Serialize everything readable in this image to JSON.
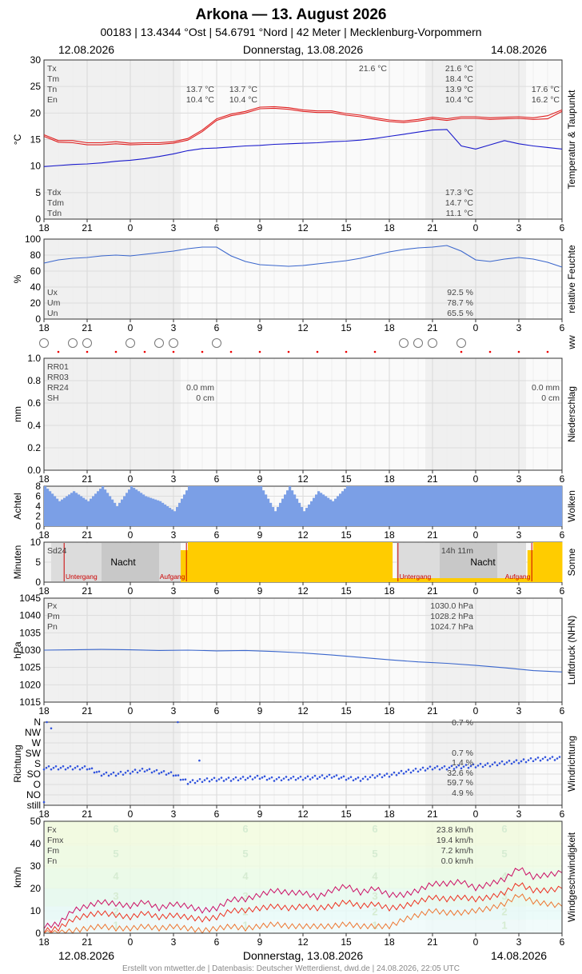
{
  "header": {
    "title": "Arkona  —  13. August 2026",
    "subtitle": "00183  |  13.4344 °Ost  |  54.6791 °Nord  |  42 Meter  |  Mecklenburg-Vorpommern",
    "date_left": "12.08.2026",
    "date_center": "Donnerstag, 13.08.2026",
    "date_right": "14.08.2026"
  },
  "footer": "Erstellt von mtwetter.de | Datenbasis: Deutscher Wetterdienst, dwd.de | 24.08.2026, 22:05 UTC",
  "x_ticks": [
    "18",
    "21",
    "0",
    "3",
    "6",
    "9",
    "12",
    "15",
    "18",
    "21",
    "0",
    "3",
    "6"
  ],
  "colors": {
    "temp": "#e02020",
    "dew": "#1a1acc",
    "humidity": "#3a66cc",
    "pressure": "#3a66cc",
    "clouds": "#7b9fe6",
    "sun": "#ffcc00",
    "direction": "#3355dd",
    "fx": "#cc1166",
    "fm": "#ee3322",
    "fn": "#ee7733"
  },
  "panels": {
    "temperature": {
      "side_label": "Temperatur & Taupunkt",
      "ylabel": "°C",
      "yticks": [
        "30",
        "25",
        "20",
        "15",
        "10",
        "5",
        "0"
      ],
      "info_labels": [
        "Tx",
        "Tm",
        "Tn",
        "En"
      ],
      "info_labels_low": [
        "Tdx",
        "Tdm",
        "Tdn"
      ],
      "annot_day1": [
        "13.7 °C",
        "10.4 °C"
      ],
      "annot_day1b": [
        "13.7 °C",
        "10.4 °C"
      ],
      "annot_peak": "21.6 °C",
      "annot_day2": [
        "21.6 °C",
        "18.4 °C",
        "13.9 °C",
        "10.4 °C"
      ],
      "annot_day3": [
        "17.6 °C",
        "16.2 °C"
      ],
      "annot_dew": [
        "17.3 °C",
        "14.7 °C",
        "11.1 °C"
      ]
    },
    "humidity": {
      "side_label": "relative Feuchte",
      "ylabel": "%",
      "yticks": [
        "100",
        "80",
        "60",
        "40",
        "20",
        "0"
      ],
      "info_labels": [
        "Ux",
        "Um",
        "Un"
      ],
      "info_values": [
        "92.5 %",
        "78.7 %",
        "65.5 %"
      ]
    },
    "ww": {
      "side_label": "ww"
    },
    "precipitation": {
      "side_label": "Niederschlag",
      "ylabel": "mm",
      "yticks": [
        "1.0",
        "0.8",
        "0.6",
        "0.4",
        "0.2",
        "0.0"
      ],
      "info_labels": [
        "RR01",
        "RR03",
        "RR24",
        "SH"
      ],
      "day1_values": [
        "0.0 mm",
        "0 cm"
      ],
      "day2_values": [
        "0.0 mm",
        "0 cm"
      ]
    },
    "clouds": {
      "side_label": "Wolken",
      "ylabel": "Achtel",
      "yticks": [
        "8",
        "6",
        "4",
        "2",
        "0"
      ]
    },
    "sunshine": {
      "side_label": "Sonne",
      "ylabel": "Minuten",
      "yticks": [
        "10",
        "5",
        "0"
      ],
      "label_sd": "Sd24",
      "sd_value": "14h 11m",
      "night": "Nacht",
      "sunset": "Untergang",
      "sunrise": "Aufgang"
    },
    "pressure": {
      "side_label": "Luftdruck (NHN)",
      "ylabel": "hPa",
      "yticks": [
        "1045",
        "1040",
        "1035",
        "1030",
        "1025",
        "1020",
        "1015"
      ],
      "info_labels": [
        "Px",
        "Pm",
        "Pn"
      ],
      "info_values": [
        "1030.0 hPa",
        "1028.2 hPa",
        "1024.7 hPa"
      ]
    },
    "wind_direction": {
      "side_label": "Windrichtung",
      "ylabel": "Richtung",
      "yticks": [
        "N",
        "NW",
        "W",
        "SW",
        "S",
        "SO",
        "O",
        "NO",
        "still"
      ],
      "info_values": [
        "0.7 %",
        "0.7 %",
        "1.4 %",
        "32.6 %",
        "59.7 %",
        "4.9 %"
      ]
    },
    "wind_speed": {
      "side_label": "Windgeschwindigkeit",
      "ylabel": "km/h",
      "yticks": [
        "50",
        "40",
        "30",
        "20",
        "10",
        "0"
      ],
      "info_labels": [
        "Fx",
        "Fmx",
        "Fm",
        "Fn"
      ],
      "info_values": [
        "23.8 km/h",
        "19.4 km/h",
        "7.2 km/h",
        "0.0 km/h"
      ],
      "bft_labels": [
        "6",
        "5",
        "4",
        "3",
        "2",
        "1"
      ]
    }
  },
  "chart_data": [
    {
      "type": "line",
      "title": "Temperatur & Taupunkt",
      "ylabel": "°C",
      "ylim": [
        0,
        30
      ],
      "x": [
        -6,
        -5,
        -4,
        -3,
        -2,
        -1,
        0,
        1,
        2,
        3,
        4,
        5,
        6,
        7,
        8,
        9,
        10,
        11,
        12,
        13,
        14,
        15,
        16,
        17,
        18,
        19,
        20,
        21,
        22,
        23,
        24,
        25,
        26,
        27,
        28,
        29,
        30
      ],
      "series": [
        {
          "name": "Tx",
          "values": [
            15.9,
            14.8,
            14.8,
            14.4,
            14.4,
            14.6,
            14.3,
            14.4,
            14.4,
            14.6,
            15.2,
            16.8,
            18.9,
            19.8,
            20.3,
            21.1,
            21.2,
            21.0,
            20.6,
            20.4,
            20.4,
            19.9,
            19.6,
            19.1,
            18.7,
            18.5,
            18.8,
            19.2,
            18.9,
            19.3,
            19.3,
            19.1,
            19.2,
            19.3,
            19.1,
            19.5,
            20.6
          ]
        },
        {
          "name": "Tn",
          "values": [
            15.6,
            14.5,
            14.4,
            14.0,
            14.0,
            14.2,
            14.0,
            14.1,
            14.1,
            14.3,
            14.9,
            16.5,
            18.6,
            19.5,
            20.0,
            20.8,
            20.9,
            20.7,
            20.3,
            20.1,
            20.1,
            19.6,
            19.3,
            18.8,
            18.4,
            18.2,
            18.5,
            18.9,
            18.6,
            19.0,
            19.0,
            18.8,
            18.9,
            19.0,
            18.8,
            18.9,
            20.3
          ]
        },
        {
          "name": "Td",
          "values": [
            9.9,
            10.1,
            10.3,
            10.4,
            10.6,
            10.9,
            11.1,
            11.4,
            11.8,
            12.3,
            12.9,
            13.3,
            13.4,
            13.6,
            13.8,
            13.9,
            14.1,
            14.2,
            14.3,
            14.4,
            14.6,
            14.7,
            14.9,
            15.2,
            15.6,
            16.0,
            16.4,
            16.8,
            16.9,
            13.8,
            13.2,
            14.0,
            14.8,
            14.2,
            13.8,
            13.5,
            13.2
          ]
        }
      ]
    },
    {
      "type": "line",
      "title": "relative Feuchte",
      "ylabel": "%",
      "ylim": [
        0,
        100
      ],
      "x": [
        -6,
        -5,
        -4,
        -3,
        -2,
        -1,
        0,
        1,
        2,
        3,
        4,
        5,
        6,
        7,
        8,
        9,
        10,
        11,
        12,
        13,
        14,
        15,
        16,
        17,
        18,
        19,
        20,
        21,
        22,
        23,
        24,
        25,
        26,
        27,
        28,
        29,
        30
      ],
      "series": [
        {
          "name": "U",
          "values": [
            70,
            74,
            76,
            77,
            79,
            80,
            79,
            81,
            83,
            85,
            88,
            90,
            90,
            79,
            72,
            68,
            67,
            66,
            67,
            69,
            71,
            73,
            76,
            80,
            84,
            87,
            89,
            90,
            92,
            85,
            74,
            72,
            75,
            77,
            75,
            71,
            65
          ]
        }
      ]
    },
    {
      "type": "bar",
      "title": "Niederschlag",
      "ylabel": "mm",
      "ylim": [
        0,
        1
      ],
      "x": [
        -6,
        30
      ],
      "series": [
        {
          "name": "RR01",
          "values": [
            0.0,
            0.0
          ]
        }
      ]
    },
    {
      "type": "area",
      "title": "Wolken",
      "ylabel": "Achtel",
      "ylim": [
        0,
        8
      ],
      "x": [
        -6,
        -5,
        -4,
        -3,
        -2,
        -1,
        0,
        1,
        2,
        3,
        4,
        5,
        6,
        7,
        8,
        9,
        10,
        11,
        12,
        13,
        14,
        15,
        16,
        17,
        18,
        19,
        20,
        21,
        22,
        23,
        24,
        25,
        26,
        27,
        28,
        29,
        30
      ],
      "series": [
        {
          "name": "N",
          "values": [
            8,
            5,
            7,
            5,
            8,
            4,
            8,
            6,
            5,
            3,
            8,
            8,
            8,
            8,
            8,
            8,
            3,
            8,
            3,
            7,
            5,
            8,
            8,
            8,
            8,
            8,
            8,
            8,
            8,
            8,
            8,
            8,
            8,
            8,
            8,
            8,
            8
          ]
        }
      ]
    },
    {
      "type": "bar",
      "title": "Sonne",
      "ylabel": "Minuten",
      "ylim": [
        0,
        10
      ],
      "x": [
        3.5,
        4,
        5,
        6,
        7,
        8,
        9,
        10,
        11,
        12,
        13,
        14,
        15,
        16,
        17,
        18,
        18.2,
        27.6,
        28,
        29,
        30
      ],
      "series": [
        {
          "name": "SD",
          "values": [
            8,
            10,
            10,
            10,
            10,
            10,
            10,
            10,
            10,
            10,
            10,
            10,
            10,
            10,
            10,
            10,
            1,
            8,
            10,
            10,
            10
          ]
        }
      ]
    },
    {
      "type": "line",
      "title": "Luftdruck (NHN)",
      "ylabel": "hPa",
      "ylim": [
        1015,
        1045
      ],
      "x": [
        -6,
        -4,
        -2,
        0,
        2,
        4,
        6,
        8,
        10,
        12,
        14,
        16,
        18,
        20,
        22,
        24,
        26,
        28,
        30
      ],
      "series": [
        {
          "name": "P",
          "values": [
            1030.0,
            1030.1,
            1030.2,
            1030.1,
            1029.9,
            1030.0,
            1029.8,
            1029.9,
            1029.6,
            1029.2,
            1028.6,
            1027.9,
            1027.2,
            1026.6,
            1026.2,
            1025.6,
            1024.9,
            1024.1,
            1023.7
          ]
        }
      ]
    },
    {
      "type": "scatter",
      "title": "Windrichtung",
      "ylabel": "Richtung",
      "categories": [
        "still",
        "NO",
        "O",
        "SO",
        "S",
        "SW",
        "W",
        "NW",
        "N"
      ],
      "x": [
        -6,
        -5,
        -4,
        -3,
        -2,
        -1,
        0,
        1,
        2,
        3,
        4,
        5,
        6,
        7,
        8,
        9,
        10,
        11,
        12,
        13,
        14,
        15,
        16,
        17,
        18,
        19,
        20,
        21,
        22,
        23,
        24,
        25,
        26,
        27,
        28,
        29,
        30
      ],
      "series": [
        {
          "name": "dd",
          "values": [
            3.6,
            3.6,
            3.6,
            3.6,
            3.0,
            3.0,
            3.2,
            3.4,
            3.2,
            3.0,
            2.2,
            2.4,
            2.5,
            2.5,
            2.6,
            2.7,
            2.5,
            2.6,
            2.6,
            2.7,
            2.8,
            2.6,
            2.5,
            2.8,
            2.9,
            3.2,
            3.4,
            3.6,
            3.6,
            3.7,
            3.8,
            3.9,
            4.1,
            4.2,
            4.4,
            4.5,
            4.5
          ]
        }
      ]
    },
    {
      "type": "line",
      "title": "Windgeschwindigkeit",
      "ylabel": "km/h",
      "ylim": [
        0,
        50
      ],
      "x": [
        -6,
        -5,
        -4,
        -3,
        -2,
        -1,
        0,
        1,
        2,
        3,
        4,
        5,
        6,
        7,
        8,
        9,
        10,
        11,
        12,
        13,
        14,
        15,
        16,
        17,
        18,
        19,
        20,
        21,
        22,
        23,
        24,
        25,
        26,
        27,
        28,
        29,
        30
      ],
      "series": [
        {
          "name": "Fx",
          "values": [
            3,
            4,
            10,
            12,
            14,
            13,
            12,
            14,
            11,
            13,
            12,
            10,
            11,
            15,
            15,
            17,
            19,
            18,
            18,
            16,
            19,
            21,
            18,
            20,
            17,
            17,
            19,
            22,
            22,
            23,
            20,
            22,
            24,
            29,
            25,
            26,
            27
          ]
        },
        {
          "name": "Fm",
          "values": [
            1,
            2,
            6,
            8,
            9,
            8,
            7,
            9,
            7,
            8,
            7,
            6,
            7,
            10,
            10,
            11,
            12,
            11,
            12,
            11,
            12,
            14,
            12,
            13,
            11,
            12,
            14,
            16,
            15,
            16,
            15,
            16,
            18,
            22,
            19,
            19,
            20
          ]
        },
        {
          "name": "Fn",
          "values": [
            0,
            0,
            1,
            2,
            3,
            2,
            2,
            3,
            2,
            3,
            2,
            1,
            2,
            3,
            2,
            3,
            4,
            3,
            3,
            3,
            3,
            4,
            3,
            3,
            3,
            6,
            8,
            10,
            9,
            9,
            10,
            11,
            13,
            17,
            14,
            13,
            12
          ]
        }
      ]
    }
  ]
}
